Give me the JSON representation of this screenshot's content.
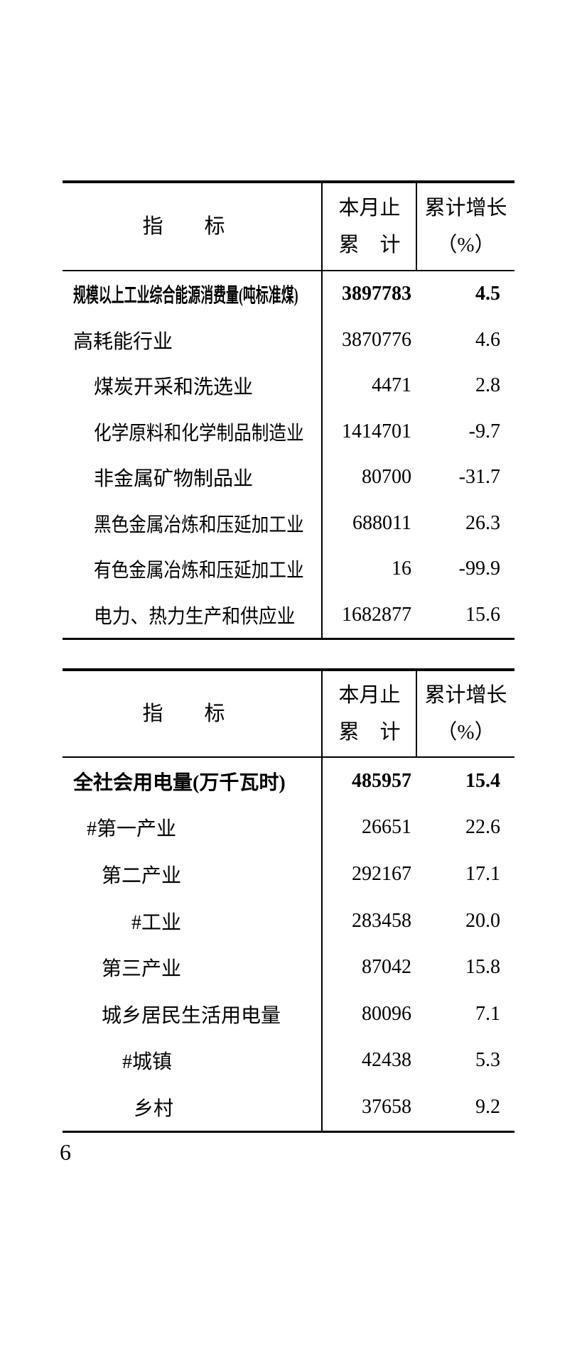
{
  "page": {
    "number": "6"
  },
  "colors": {
    "text": "#000000",
    "background": "#ffffff",
    "rule": "#000000"
  },
  "tables": [
    {
      "name": "industrial-energy-consumption",
      "header": {
        "indicator": "指　　标",
        "cum_line1": "本月止",
        "cum_line2": "累　计",
        "growth_line1": "累计增长",
        "growth_line2": "（%）"
      },
      "rows": [
        {
          "label": "规模以上工业综合能源消费量(吨标准煤)",
          "value": "3897783",
          "growth": "4.5"
        },
        {
          "label": "高耗能行业",
          "value": "3870776",
          "growth": "4.6"
        },
        {
          "label": "煤炭开采和洗选业",
          "value": "4471",
          "growth": "2.8"
        },
        {
          "label": "化学原料和化学制品制造业",
          "value": "1414701",
          "growth": "-9.7"
        },
        {
          "label": "非金属矿物制品业",
          "value": "80700",
          "growth": "-31.7"
        },
        {
          "label": "黑色金属冶炼和压延加工业",
          "value": "688011",
          "growth": "26.3"
        },
        {
          "label": "有色金属冶炼和压延加工业",
          "value": "16",
          "growth": "-99.9"
        },
        {
          "label": "电力、热力生产和供应业",
          "value": "1682877",
          "growth": "15.6"
        }
      ]
    },
    {
      "name": "electricity-consumption",
      "header": {
        "indicator": "指　　标",
        "cum_line1": "本月止",
        "cum_line2": "累　计",
        "growth_line1": "累计增长",
        "growth_line2": "（%）"
      },
      "rows": [
        {
          "label": "全社会用电量(万千瓦时)",
          "value": "485957",
          "growth": "15.4"
        },
        {
          "label": "#第一产业",
          "value": "26651",
          "growth": "22.6"
        },
        {
          "label": "第二产业",
          "value": "292167",
          "growth": "17.1"
        },
        {
          "label": "#工业",
          "value": "283458",
          "growth": "20.0"
        },
        {
          "label": "第三产业",
          "value": "87042",
          "growth": "15.8"
        },
        {
          "label": "城乡居民生活用电量",
          "value": "80096",
          "growth": "7.1"
        },
        {
          "label": "#城镇",
          "value": "42438",
          "growth": "5.3"
        },
        {
          "label": "乡村",
          "value": "37658",
          "growth": "9.2"
        }
      ]
    }
  ]
}
